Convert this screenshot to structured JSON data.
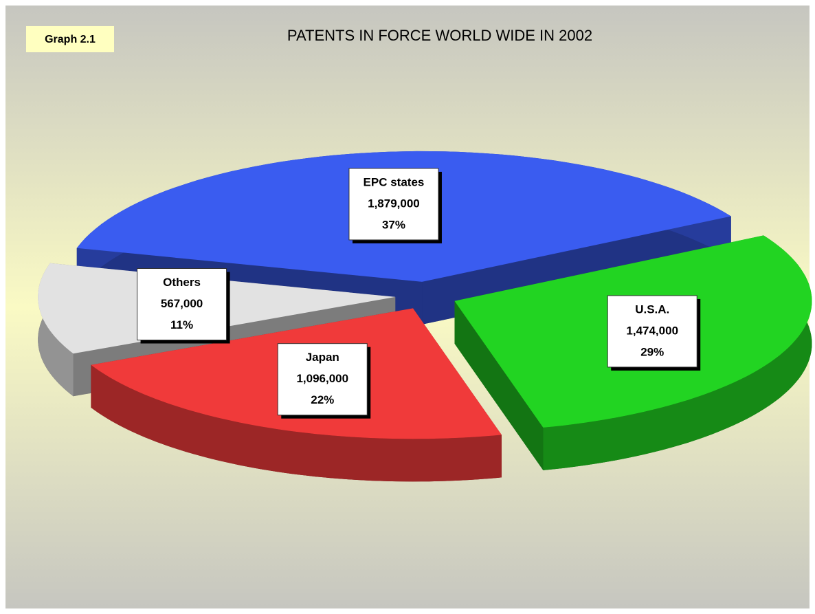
{
  "chart_data": {
    "type": "pie",
    "badge": "Graph 2.1",
    "title": "PATENTS IN FORCE WORLD WIDE IN 2002",
    "categories": [
      "EPC states",
      "U.S.A.",
      "Japan",
      "Others"
    ],
    "values": [
      1879000,
      1474000,
      1096000,
      567000
    ],
    "value_labels": [
      "1,879,000",
      "1,474,000",
      "1,096,000",
      "567,000"
    ],
    "percents": [
      37,
      29,
      22,
      11
    ],
    "percent_labels": [
      "37%",
      "29%",
      "22%",
      "11%"
    ],
    "colors": [
      "#3a5cf0",
      "#22d422",
      "#f03a3a",
      "#e2e2e2"
    ]
  }
}
